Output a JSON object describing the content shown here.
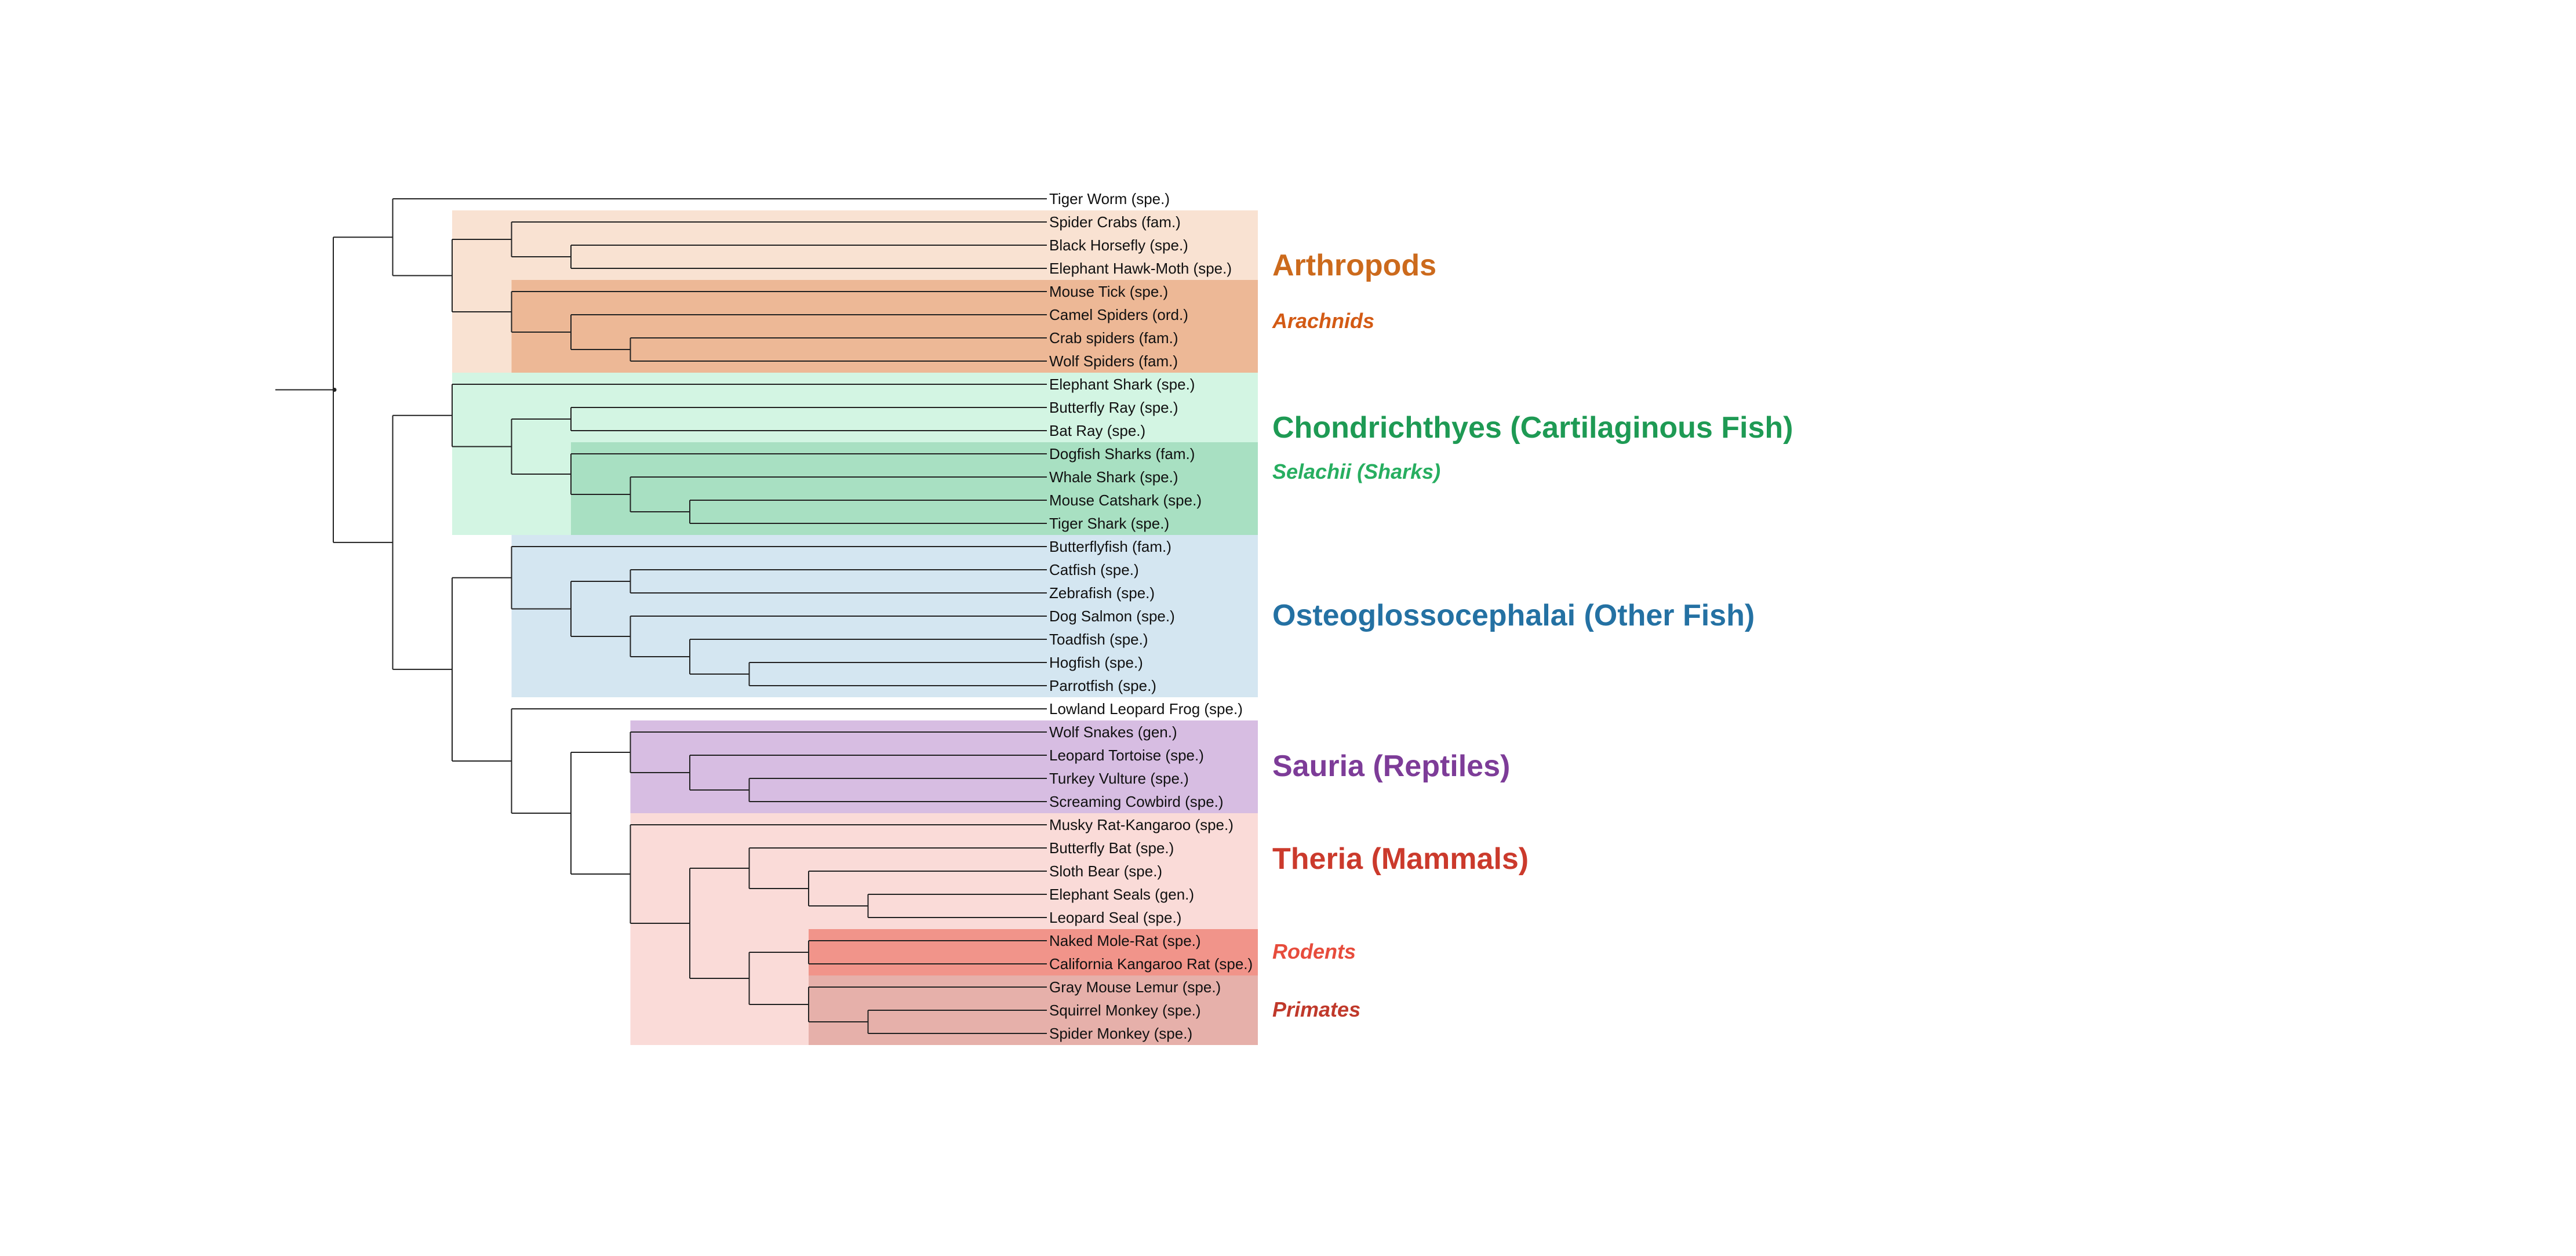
{
  "tree": {
    "leaves": [
      "Tiger Worm (spe.)",
      "Spider Crabs (fam.)",
      "Black Horsefly (spe.)",
      "Elephant Hawk-Moth (spe.)",
      "Mouse Tick (spe.)",
      "Camel Spiders (ord.)",
      "Crab spiders (fam.)",
      "Wolf Spiders (fam.)",
      "Elephant Shark (spe.)",
      "Butterfly Ray (spe.)",
      "Bat Ray (spe.)",
      "Dogfish Sharks (fam.)",
      "Whale Shark (spe.)",
      "Mouse Catshark (spe.)",
      "Tiger Shark (spe.)",
      "Butterflyfish (fam.)",
      "Catfish (spe.)",
      "Zebrafish (spe.)",
      "Dog Salmon (spe.)",
      "Toadfish (spe.)",
      "Hogfish (spe.)",
      "Parrotfish (spe.)",
      "Lowland Leopard Frog (spe.)",
      "Wolf Snakes (gen.)",
      "Leopard Tortoise (spe.)",
      "Turkey Vulture (spe.)",
      "Screaming Cowbird (spe.)",
      "Musky Rat-Kangaroo (spe.)",
      "Butterfly Bat (spe.)",
      "Sloth Bear (spe.)",
      "Elephant Seals (gen.)",
      "Leopard Seal (spe.)",
      "Naked Mole-Rat (spe.)",
      "California Kangaroo Rat (spe.)",
      "Gray Mouse Lemur (spe.)",
      "Squirrel Monkey (spe.)",
      "Spider Monkey (spe.)"
    ],
    "newick": "((0,((1,(2,3)),(4,(5,(6,7))))),((8,((9,10),(11,(12,(13,14))))),((15,((16,17),(18,(19,(20,21))))),(22,((23,(24,(25,26))),(27,((28,(29,(30,31))),((32,33),(34,(35,36))))))))))",
    "clades": [
      {
        "label": "Arthropods",
        "level": "major",
        "first_leaf": 1,
        "last_leaf": 7,
        "fill": "#f9e2d2",
        "text_color": "#cc6a1c"
      },
      {
        "label": "Arachnids",
        "level": "minor",
        "first_leaf": 4,
        "last_leaf": 7,
        "fill": "#edb896",
        "text_color": "#d35a14"
      },
      {
        "label": "Chondrichthyes (Cartilaginous Fish)",
        "level": "major",
        "first_leaf": 8,
        "last_leaf": 14,
        "fill": "#d3f5e3",
        "text_color": "#1e9a54"
      },
      {
        "label": "Selachii (Sharks)",
        "level": "minor",
        "first_leaf": 11,
        "last_leaf": 14,
        "fill": "#a8e0c2",
        "text_color": "#27ae60"
      },
      {
        "label": "Osteoglossocephalai (Other Fish)",
        "level": "major",
        "first_leaf": 15,
        "last_leaf": 21,
        "fill": "#d4e6f1",
        "text_color": "#2471a3"
      },
      {
        "label": "Sauria (Reptiles)",
        "level": "major",
        "first_leaf": 23,
        "last_leaf": 26,
        "fill": "#d7bde2",
        "text_color": "#7d3c98"
      },
      {
        "label": "Theria (Mammals)",
        "level": "major",
        "first_leaf": 27,
        "last_leaf": 36,
        "fill": "#fadbd8",
        "text_color": "#cb3a2c"
      },
      {
        "label": "Rodents",
        "level": "minor",
        "first_leaf": 32,
        "last_leaf": 33,
        "fill": "#f1948a",
        "text_color": "#e74c3c"
      },
      {
        "label": "Primates",
        "level": "minor",
        "first_leaf": 34,
        "last_leaf": 36,
        "fill": "#e6b0aa",
        "text_color": "#c0392b"
      }
    ],
    "line_color": "#222222"
  }
}
